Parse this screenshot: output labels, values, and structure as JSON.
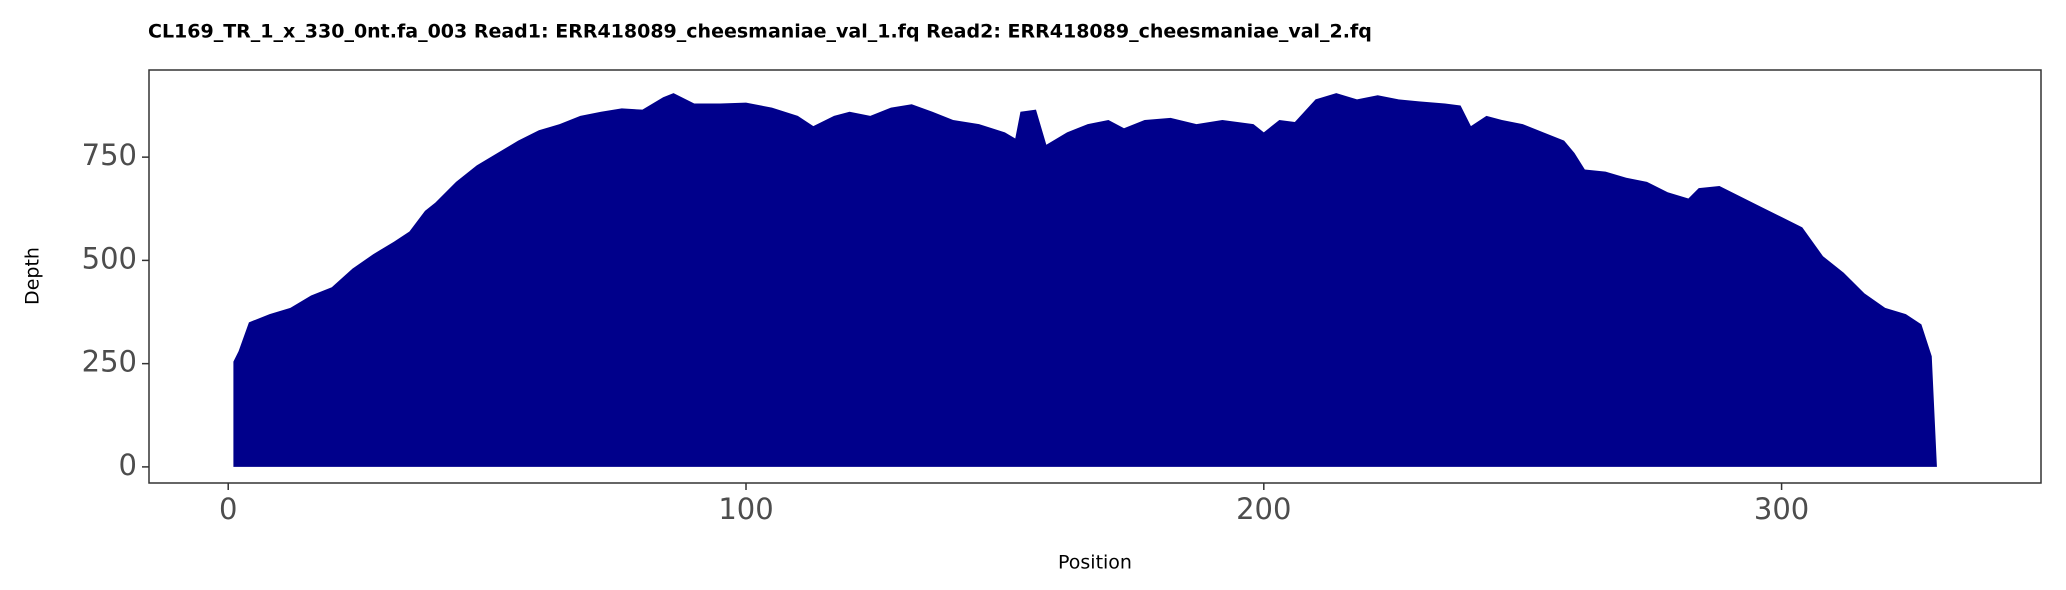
{
  "chart_data": {
    "type": "area",
    "title": "CL169_TR_1_x_330_0nt.fa_003   Read1: ERR418089_cheesmaniae_val_1.fq   Read2: ERR418089_cheesmaniae_val_2.fq",
    "x_label": "Position",
    "y_label": "Depth",
    "color": "#00008B",
    "xlim": [
      -15.3,
      350.1
    ],
    "ylim": [
      -39,
      961
    ],
    "xticks": [
      0,
      100,
      200,
      300
    ],
    "yticks": [
      0,
      250,
      500,
      750
    ],
    "grid": false,
    "x": [
      1,
      2,
      4,
      8,
      12,
      16,
      20,
      24,
      28,
      32,
      35,
      38,
      40,
      44,
      48,
      52,
      56,
      60,
      64,
      68,
      72,
      76,
      80,
      84,
      86,
      90,
      95,
      100,
      105,
      110,
      113,
      117,
      120,
      124,
      128,
      132,
      136,
      140,
      145,
      150,
      152,
      153,
      156,
      158,
      162,
      166,
      170,
      173,
      177,
      182,
      187,
      192,
      198,
      200,
      203,
      206,
      210,
      214,
      218,
      222,
      226,
      230,
      235,
      238,
      240,
      243,
      246,
      250,
      254,
      258,
      260,
      262,
      266,
      270,
      274,
      278,
      282,
      284,
      288,
      292,
      296,
      300,
      304,
      308,
      312,
      316,
      320,
      324,
      327,
      329,
      330
    ],
    "values": [
      255,
      280,
      350,
      370,
      385,
      415,
      435,
      480,
      515,
      545,
      570,
      620,
      640,
      690,
      730,
      760,
      790,
      815,
      830,
      850,
      860,
      868,
      865,
      895,
      905,
      880,
      880,
      882,
      870,
      850,
      825,
      850,
      860,
      850,
      870,
      878,
      860,
      840,
      830,
      810,
      795,
      860,
      865,
      780,
      810,
      830,
      840,
      820,
      840,
      845,
      830,
      840,
      830,
      810,
      840,
      835,
      890,
      905,
      890,
      900,
      890,
      885,
      880,
      875,
      825,
      850,
      840,
      830,
      810,
      790,
      760,
      720,
      715,
      700,
      690,
      665,
      650,
      675,
      680,
      655,
      630,
      605,
      580,
      510,
      470,
      420,
      385,
      370,
      345,
      268,
      0
    ]
  }
}
